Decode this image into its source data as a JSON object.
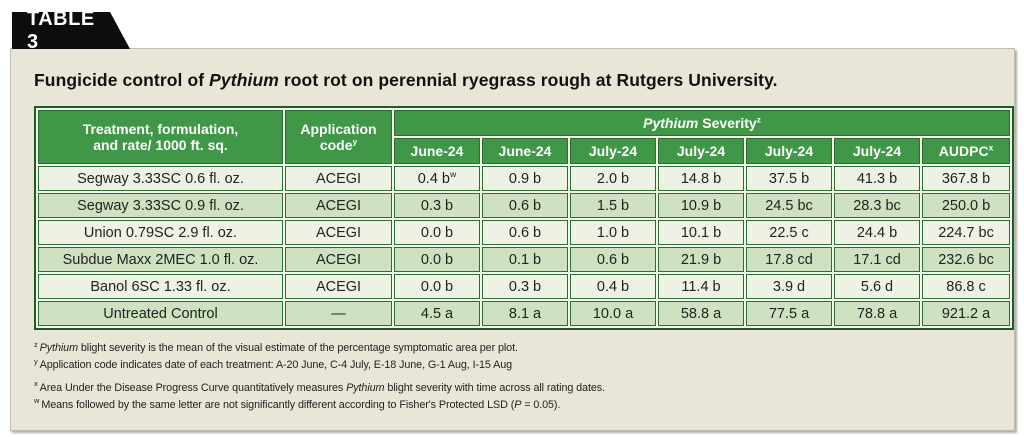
{
  "tab_label": "TABLE 3",
  "title": {
    "pre": "Fungicide control of ",
    "italic": "Pythium",
    "post": " root rot on perennial ryegrass rough at Rutgers University."
  },
  "colors": {
    "header_green": "#3f9747",
    "border_green": "#2b6e33",
    "outer_border_green": "#1d5c29",
    "row_light": "#edf2e4",
    "row_alt": "#cee2c2",
    "panel_bg": "#e9e6d7",
    "tab_bg": "#0d0d0d"
  },
  "table": {
    "header": {
      "treatment_line1": "Treatment, formulation,",
      "treatment_line2": "and rate/ 1000 ft. sq.",
      "application_line1": "Application",
      "application_line2": "code",
      "application_sup": "y",
      "severity_italic": "Pythium",
      "severity_text": " Severity",
      "severity_sup": "z",
      "dates": [
        "June-24",
        "June-24",
        "July-24",
        "July-24",
        "July-24",
        "July-24"
      ],
      "audpc_text": "AUDPC",
      "audpc_sup": "x"
    },
    "rows": [
      {
        "treatment": "Segway 3.33SC 0.6 fl. oz.",
        "code": "ACEGI",
        "values": [
          "0.4 b",
          "0.9 b",
          "2.0 b",
          "14.8 b",
          "37.5 b",
          "41.3 b",
          "367.8 b"
        ],
        "value_sups": [
          "w",
          "",
          "",
          "",
          "",
          "",
          ""
        ]
      },
      {
        "treatment": "Segway 3.33SC 0.9 fl. oz.",
        "code": "ACEGI",
        "values": [
          "0.3 b",
          "0.6 b",
          "1.5 b",
          "10.9 b",
          "24.5 bc",
          "28.3 bc",
          "250.0 b"
        ],
        "value_sups": [
          "",
          "",
          "",
          "",
          "",
          "",
          ""
        ]
      },
      {
        "treatment": "Union 0.79SC 2.9 fl. oz.",
        "code": "ACEGI",
        "values": [
          "0.0 b",
          "0.6 b",
          "1.0 b",
          "10.1 b",
          "22.5 c",
          "24.4 b",
          "224.7 bc"
        ],
        "value_sups": [
          "",
          "",
          "",
          "",
          "",
          "",
          ""
        ]
      },
      {
        "treatment": "Subdue Maxx 2MEC 1.0 fl. oz.",
        "code": "ACEGI",
        "values": [
          "0.0 b",
          "0.1 b",
          "0.6 b",
          "21.9 b",
          "17.8 cd",
          "17.1 cd",
          "232.6 bc"
        ],
        "value_sups": [
          "",
          "",
          "",
          "",
          "",
          "",
          ""
        ]
      },
      {
        "treatment": "Banol 6SC 1.33 fl. oz.",
        "code": "ACEGI",
        "values": [
          "0.0 b",
          "0.3 b",
          "0.4 b",
          "11.4 b",
          "3.9 d",
          "5.6 d",
          "86.8 c"
        ],
        "value_sups": [
          "",
          "",
          "",
          "",
          "",
          "",
          ""
        ]
      },
      {
        "treatment": "Untreated Control",
        "code": "—",
        "values": [
          "4.5 a",
          "8.1 a",
          "10.0 a",
          "58.8 a",
          "77.5 a",
          "78.8 a",
          "921.2 a"
        ],
        "value_sups": [
          "",
          "",
          "",
          "",
          "",
          "",
          ""
        ]
      }
    ]
  },
  "footnotes": {
    "note1": {
      "sup": "z",
      "italic": "Pythium",
      "post": " blight severity is the mean of the visual estimate of the percentage symptomatic area per plot."
    },
    "note2": {
      "sup": "y",
      "text": "Application code indicates date of each treatment: A-20 June, C-4 July, E-18 June, G-1 Aug, I-15 Aug"
    },
    "note3": {
      "sup": "x",
      "pre": "Area Under the Disease Progress Curve quantitatively measures ",
      "italic": "Pythium",
      "post": " blight severity with time across all rating dates."
    },
    "note4": {
      "sup": "w",
      "pre": "Means followed by the same letter are not significantly different according to Fisher's Protected LSD (",
      "italic": "P",
      "post": " = 0.05)."
    }
  }
}
